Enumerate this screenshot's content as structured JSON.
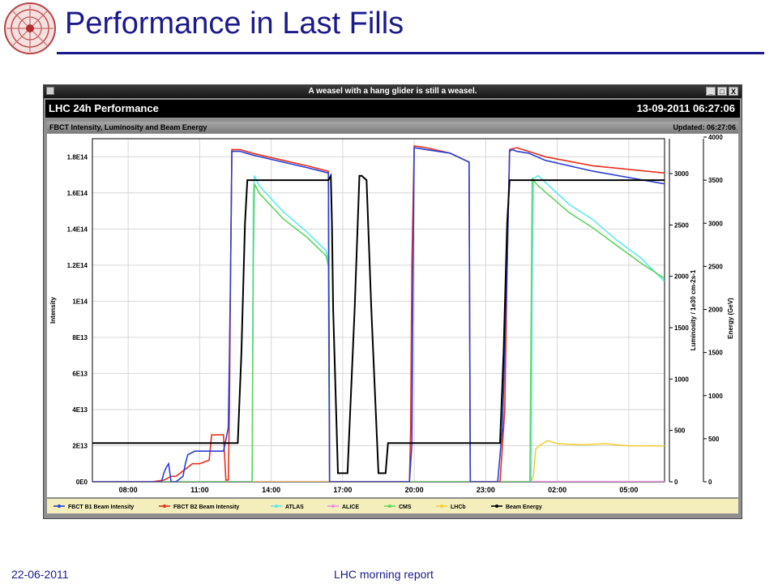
{
  "slide": {
    "title": "Performance in Last Fills",
    "footer_date": "22-06-2011",
    "footer_center": "LHC morning report"
  },
  "window": {
    "caption": "A weasel with a hang glider is still a weasel.",
    "app_title": "LHC 24h Performance",
    "datetime": "13-09-2011 06:27:06",
    "panel_title": "FBCT Intensity, Luminosity and Beam Energy",
    "panel_updated": "Updated: 06:27:06",
    "buttons": [
      "_",
      "□",
      "X"
    ]
  },
  "colors": {
    "b1": "#2a3fd6",
    "b2": "#e8301c",
    "atlas": "#5de8ee",
    "alice": "#ee90e4",
    "cms": "#5ed65e",
    "lhcb": "#f2cf3a",
    "energy": "#000000"
  },
  "chart_data": {
    "type": "line",
    "title": "",
    "xlabel": "",
    "x_ticks": [
      "08:00",
      "11:00",
      "14:00",
      "17:00",
      "20:00",
      "23:00",
      "02:00",
      "05:00"
    ],
    "x_range_hours": [
      6.5,
      30.5
    ],
    "y_left": {
      "label": "Intensity",
      "ticks": [
        "0E0",
        "2E13",
        "4E13",
        "6E13",
        "8E13",
        "1E14",
        "1.2E14",
        "1.4E14",
        "1.6E14",
        "1.8E14"
      ],
      "range": [
        0,
        190000000000000.0
      ]
    },
    "y_right1": {
      "label": "Luminosity / 1e30 cm-2s-1",
      "ticks": [
        "0",
        "500",
        "1000",
        "1500",
        "2000",
        "2500",
        "3000"
      ],
      "range": [
        0,
        3000
      ]
    },
    "y_right2": {
      "label": "Energy (GeV)",
      "ticks": [
        "0",
        "500",
        "1000",
        "1500",
        "2000",
        "2500",
        "3000",
        "3500",
        "4000"
      ],
      "range": [
        0,
        4000
      ]
    },
    "grid": true,
    "legend_position": "bottom",
    "series": [
      {
        "name": "FBCT B1 Beam Intensity",
        "axis": "intensity",
        "color": "#2a3fd6",
        "x": [
          6.5,
          9.4,
          9.5,
          9.6,
          9.7,
          9.8,
          10.0,
          10.3,
          10.4,
          10.5,
          10.8,
          11.5,
          12.0,
          12.05,
          12.2,
          12.25,
          12.3,
          12.35,
          12.7,
          13.2,
          14.5,
          15.5,
          16.4,
          16.45,
          19.8,
          19.9,
          19.95,
          20.0,
          20.5,
          21.5,
          22.3,
          22.35,
          23.5,
          23.7,
          23.9,
          24.0,
          24.1,
          24.3,
          24.8,
          25.5,
          27.5,
          30.5
        ],
        "y": [
          0,
          0,
          5000000000000.0,
          8000000000000.0,
          10000000000000.0,
          0,
          0,
          3000000000000.0,
          10000000000000.0,
          15000000000000.0,
          17000000000000.0,
          17000000000000.0,
          17000000000000.0,
          20000000000000.0,
          30000000000000.0,
          70000000000000.0,
          120000000000000.0,
          183000000000000.0,
          183000000000000.0,
          181000000000000.0,
          177000000000000.0,
          174000000000000.0,
          171000000000000.0,
          0,
          0,
          20000000000000.0,
          120000000000000.0,
          185000000000000.0,
          184000000000000.0,
          182000000000000.0,
          177000000000000.0,
          0,
          0,
          30000000000000.0,
          120000000000000.0,
          183000000000000.0,
          184000000000000.0,
          183000000000000.0,
          182000000000000.0,
          178000000000000.0,
          172000000000000.0,
          165000000000000.0
        ]
      },
      {
        "name": "FBCT B2 Beam Intensity",
        "axis": "intensity",
        "color": "#e8301c",
        "x": [
          6.5,
          9.0,
          9.5,
          9.8,
          10.0,
          10.5,
          10.7,
          11.0,
          11.4,
          11.5,
          12.0,
          12.1,
          12.2,
          12.25,
          12.3,
          12.35,
          12.7,
          13.2,
          14.5,
          15.5,
          16.4,
          16.45,
          19.8,
          19.85,
          19.9,
          20.0,
          20.5,
          21.5,
          22.3,
          22.35,
          23.6,
          23.8,
          23.9,
          24.0,
          24.3,
          24.8,
          25.5,
          27.5,
          30.5
        ],
        "y": [
          0,
          0,
          1000000000000.0,
          3000000000000.0,
          3000000000000.0,
          8000000000000.0,
          10000000000000.0,
          10000000000000.0,
          12000000000000.0,
          26000000000000.0,
          26000000000000.0,
          1000000000000.0,
          1000000000000.0,
          40000000000000.0,
          120000000000000.0,
          184000000000000.0,
          184000000000000.0,
          182000000000000.0,
          178000000000000.0,
          175000000000000.0,
          172000000000000.0,
          0,
          0,
          30000000000000.0,
          120000000000000.0,
          186000000000000.0,
          185000000000000.0,
          182000000000000.0,
          177000000000000.0,
          0,
          0,
          40000000000000.0,
          120000000000000.0,
          184000000000000.0,
          185000000000000.0,
          183000000000000.0,
          180000000000000.0,
          175000000000000.0,
          171000000000000.0
        ]
      },
      {
        "name": "ATLAS",
        "axis": "luminosity",
        "color": "#5de8ee",
        "x": [
          6.5,
          13.2,
          13.25,
          13.3,
          13.5,
          14.5,
          15.5,
          16.3,
          16.4,
          16.45,
          16.5,
          17.5,
          18.5,
          19.0,
          19.05,
          19.1,
          24.9,
          24.95,
          25.0,
          25.2,
          26.5,
          27.5,
          28.5,
          29.5,
          30.5
        ],
        "y": [
          0,
          0,
          2800,
          2980,
          2880,
          2630,
          2430,
          2250,
          2150,
          0,
          0,
          0,
          0,
          0,
          0,
          0,
          0,
          2000,
          2950,
          2980,
          2700,
          2550,
          2350,
          2180,
          1950
        ]
      },
      {
        "name": "ALICE",
        "axis": "luminosity",
        "color": "#ee90e4",
        "x": [
          6.5,
          30.5
        ],
        "y": [
          2,
          2
        ]
      },
      {
        "name": "CMS",
        "axis": "luminosity",
        "color": "#5ed65e",
        "x": [
          6.5,
          13.2,
          13.25,
          13.3,
          13.5,
          14.5,
          15.5,
          16.3,
          16.4,
          16.45,
          24.85,
          24.9,
          24.95,
          25.2,
          26.5,
          27.5,
          28.5,
          29.5,
          30.5
        ],
        "y": [
          0,
          0,
          2200,
          2900,
          2810,
          2560,
          2380,
          2200,
          2100,
          0,
          0,
          1500,
          2950,
          2880,
          2620,
          2470,
          2300,
          2130,
          1980
        ]
      },
      {
        "name": "LHCb",
        "axis": "luminosity",
        "color": "#f2cf3a",
        "x": [
          6.5,
          24.9,
          25.0,
          25.1,
          25.3,
          25.6,
          26.0,
          27.0,
          28.0,
          29.0,
          30.0,
          30.5
        ],
        "y": [
          0,
          0,
          60,
          320,
          360,
          400,
          370,
          360,
          370,
          350,
          350,
          350
        ]
      },
      {
        "name": "Beam Energy",
        "axis": "energy",
        "color": "#000000",
        "x": [
          6.5,
          12.6,
          12.75,
          12.9,
          13.0,
          16.4,
          16.5,
          16.55,
          16.6,
          16.8,
          17.0,
          17.2,
          17.5,
          17.7,
          17.8,
          18.0,
          18.2,
          18.5,
          18.8,
          18.9,
          19.0,
          23.6,
          23.75,
          23.9,
          24.0,
          30.5
        ],
        "y": [
          450,
          450,
          1500,
          3000,
          3500,
          3500,
          3550,
          3000,
          2000,
          100,
          100,
          100,
          2000,
          3550,
          3550,
          3500,
          2000,
          100,
          100,
          450,
          450,
          450,
          1500,
          3000,
          3500,
          3500
        ]
      }
    ]
  }
}
